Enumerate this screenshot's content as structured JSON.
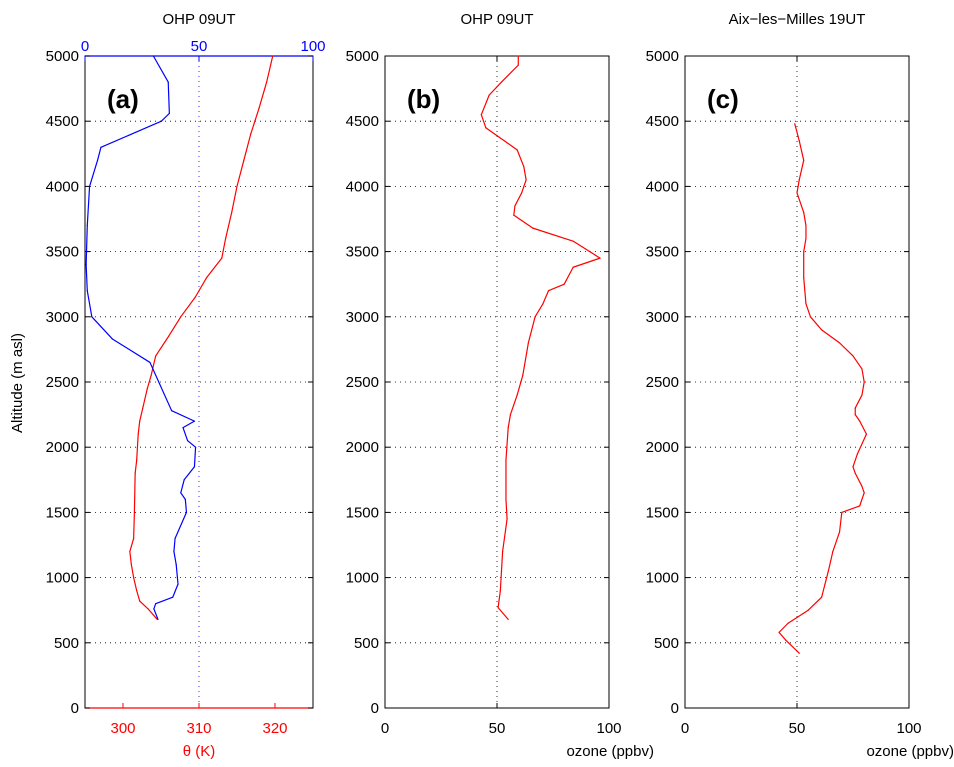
{
  "figure": {
    "ylabel": "Altitude (m asl)"
  },
  "chart_data": [
    {
      "id": "a",
      "type": "line",
      "title": "OHP 09UT",
      "panel_label": "(a)",
      "xlabel": "θ (K)",
      "ylim": [
        0,
        5000
      ],
      "yticks": [
        0,
        500,
        1000,
        1500,
        2000,
        2500,
        3000,
        3500,
        4000,
        4500,
        5000
      ],
      "xlim": [
        295,
        325
      ],
      "xticks": [
        300,
        310,
        320
      ],
      "x2lim": [
        0,
        100
      ],
      "x2ticks": [
        0,
        50,
        100
      ],
      "grid": true,
      "colors": {
        "theta": "#ff0000",
        "rh": "#0000ff"
      },
      "series": [
        {
          "axis": "bottom",
          "color": "#ff0000",
          "points": [
            [
              304.5,
              680
            ],
            [
              303.3,
              760
            ],
            [
              302.2,
              820
            ],
            [
              301.8,
              900
            ],
            [
              301.4,
              1000
            ],
            [
              301.1,
              1100
            ],
            [
              300.9,
              1200
            ],
            [
              301.4,
              1300
            ],
            [
              301.5,
              1500
            ],
            [
              301.6,
              1800
            ],
            [
              301.8,
              1900
            ],
            [
              302.0,
              2100
            ],
            [
              302.2,
              2200
            ],
            [
              302.6,
              2300
            ],
            [
              303.2,
              2450
            ],
            [
              303.7,
              2550
            ],
            [
              304.3,
              2700
            ],
            [
              306.0,
              2850
            ],
            [
              307.6,
              3000
            ],
            [
              309.5,
              3150
            ],
            [
              311.0,
              3300
            ],
            [
              313.0,
              3450
            ],
            [
              313.5,
              3600
            ],
            [
              314.3,
              3800
            ],
            [
              315.0,
              4000
            ],
            [
              315.9,
              4200
            ],
            [
              316.8,
              4400
            ],
            [
              317.9,
              4600
            ],
            [
              318.9,
              4800
            ],
            [
              319.7,
              5000
            ]
          ]
        },
        {
          "axis": "top",
          "color": "#0000ff",
          "points": [
            [
              32.0,
              680
            ],
            [
              30.2,
              760
            ],
            [
              31.0,
              800
            ],
            [
              38.5,
              850
            ],
            [
              40.8,
              950
            ],
            [
              40.0,
              1100
            ],
            [
              39.0,
              1200
            ],
            [
              39.5,
              1300
            ],
            [
              44.5,
              1500
            ],
            [
              44.0,
              1600
            ],
            [
              42.0,
              1650
            ],
            [
              43.5,
              1750
            ],
            [
              48.0,
              1850
            ],
            [
              48.5,
              2000
            ],
            [
              45.0,
              2050
            ],
            [
              43.0,
              2150
            ],
            [
              48.0,
              2200
            ],
            [
              38.0,
              2280
            ],
            [
              28.5,
              2650
            ],
            [
              12.0,
              2830
            ],
            [
              3.0,
              3000
            ],
            [
              1.0,
              3200
            ],
            [
              0.5,
              3400
            ],
            [
              1.0,
              3700
            ],
            [
              2.0,
              4000
            ],
            [
              5.5,
              4200
            ],
            [
              7.0,
              4300
            ],
            [
              33.5,
              4500
            ],
            [
              37.0,
              4560
            ],
            [
              36.5,
              4800
            ],
            [
              30.0,
              5000
            ]
          ]
        }
      ]
    },
    {
      "id": "b",
      "type": "line",
      "title": "OHP 09UT",
      "panel_label": "(b)",
      "xlabel": "ozone (ppbv)",
      "ylim": [
        0,
        5000
      ],
      "yticks": [
        0,
        500,
        1000,
        1500,
        2000,
        2500,
        3000,
        3500,
        4000,
        4500,
        5000
      ],
      "xlim": [
        0,
        100
      ],
      "xticks": [
        0,
        50,
        100
      ],
      "grid": true,
      "series": [
        {
          "color": "#ff0000",
          "points": [
            [
              55,
              680
            ],
            [
              50.5,
              770
            ],
            [
              51.5,
              900
            ],
            [
              52.0,
              1050
            ],
            [
              52.5,
              1200
            ],
            [
              54.5,
              1450
            ],
            [
              54.0,
              1600
            ],
            [
              54.0,
              1900
            ],
            [
              55.0,
              2150
            ],
            [
              56.0,
              2250
            ],
            [
              59.0,
              2400
            ],
            [
              61.5,
              2550
            ],
            [
              64.0,
              2800
            ],
            [
              67.0,
              3000
            ],
            [
              70.5,
              3100
            ],
            [
              73.0,
              3200
            ],
            [
              80.0,
              3250
            ],
            [
              84.0,
              3380
            ],
            [
              96.0,
              3450
            ],
            [
              84.0,
              3580
            ],
            [
              66.0,
              3680
            ],
            [
              57.5,
              3780
            ],
            [
              58.0,
              3850
            ],
            [
              61.0,
              3950
            ],
            [
              63.0,
              4050
            ],
            [
              62.0,
              4150
            ],
            [
              59.0,
              4280
            ],
            [
              45.0,
              4450
            ],
            [
              43.0,
              4550
            ],
            [
              46.5,
              4700
            ],
            [
              52.0,
              4800
            ],
            [
              59.5,
              4930
            ],
            [
              59.5,
              5000
            ]
          ]
        }
      ]
    },
    {
      "id": "c",
      "type": "line",
      "title": "Aix−les−Milles 19UT",
      "panel_label": "(c)",
      "xlabel": "ozone (ppbv)",
      "ylim": [
        0,
        5000
      ],
      "yticks": [
        0,
        500,
        1000,
        1500,
        2000,
        2500,
        3000,
        3500,
        4000,
        4500,
        5000
      ],
      "xlim": [
        0,
        100
      ],
      "xticks": [
        0,
        50,
        100
      ],
      "grid": true,
      "series": [
        {
          "color": "#ff0000",
          "points": [
            [
              51,
              420
            ],
            [
              45,
              520
            ],
            [
              42,
              580
            ],
            [
              46,
              650
            ],
            [
              55,
              750
            ],
            [
              61,
              850
            ],
            [
              62.5,
              950
            ],
            [
              64,
              1050
            ],
            [
              66,
              1200
            ],
            [
              69,
              1350
            ],
            [
              70,
              1500
            ],
            [
              78,
              1550
            ],
            [
              80,
              1650
            ],
            [
              79,
              1700
            ],
            [
              76,
              1800
            ],
            [
              75,
              1850
            ],
            [
              77,
              1950
            ],
            [
              81,
              2100
            ],
            [
              78,
              2200
            ],
            [
              76,
              2250
            ],
            [
              76,
              2300
            ],
            [
              79,
              2400
            ],
            [
              80,
              2500
            ],
            [
              79,
              2600
            ],
            [
              75,
              2700
            ],
            [
              69,
              2800
            ],
            [
              61,
              2900
            ],
            [
              56,
              3000
            ],
            [
              54,
              3100
            ],
            [
              53,
              3300
            ],
            [
              53,
              3500
            ],
            [
              54,
              3600
            ],
            [
              54,
              3700
            ],
            [
              53,
              3800
            ],
            [
              50,
              3950
            ],
            [
              51,
              4050
            ],
            [
              53,
              4200
            ],
            [
              51,
              4350
            ],
            [
              49,
              4480
            ]
          ]
        }
      ]
    }
  ]
}
